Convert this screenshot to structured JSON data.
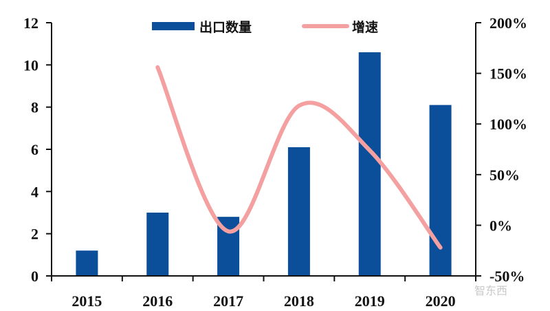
{
  "chart_data": {
    "type": "bar+line",
    "title": "",
    "categories": [
      "2015",
      "2016",
      "2017",
      "2018",
      "2019",
      "2020"
    ],
    "series": [
      {
        "name": "出口数量",
        "type": "bar",
        "axis": "left",
        "color": "#0b4f9a",
        "values": [
          1.2,
          3.0,
          2.8,
          6.1,
          10.6,
          8.1
        ]
      },
      {
        "name": "增速",
        "type": "line",
        "axis": "right",
        "color": "#f4a0a0",
        "smooth": true,
        "values": [
          null,
          156,
          -6,
          118,
          74,
          -22
        ]
      }
    ],
    "left_axis": {
      "min": 0,
      "max": 12,
      "ticks": [
        "0",
        "2",
        "4",
        "6",
        "8",
        "10",
        "12"
      ]
    },
    "right_axis": {
      "min": -50,
      "max": 200,
      "ticks": [
        "-50%",
        "0%",
        "50%",
        "100%",
        "150%",
        "200%"
      ]
    },
    "xlabel": "",
    "ylabel": "",
    "legend_position": "top",
    "grid": false
  },
  "legend": {
    "bar_label": "出口数量",
    "line_label": "增速"
  },
  "watermark": "智东西"
}
